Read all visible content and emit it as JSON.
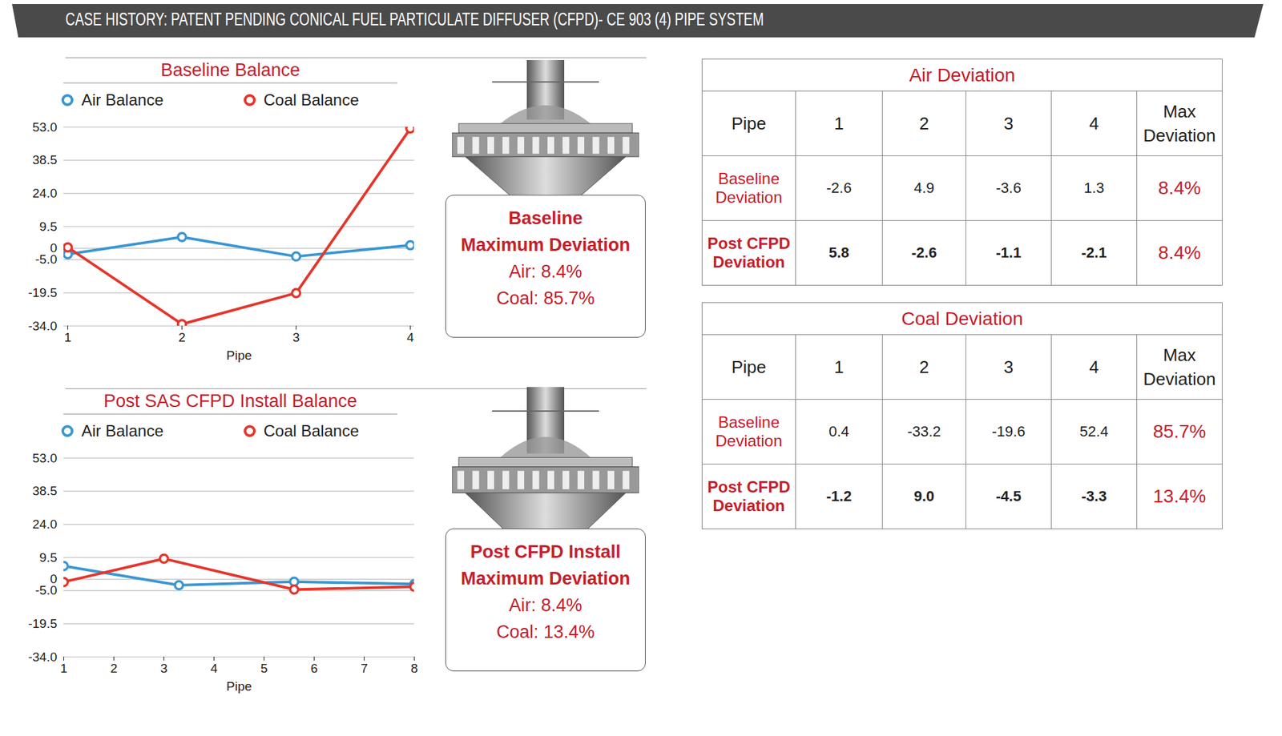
{
  "header": {
    "title": "CASE HISTORY: PATENT PENDING CONICAL FUEL PARTICULATE DIFFUSER (CFPD)- CE 903 (4) PIPE SYSTEM"
  },
  "chart_data": [
    {
      "type": "line",
      "title": "Baseline Balance",
      "xlabel": "Pipe",
      "categories": [
        "1",
        "2",
        "3",
        "4"
      ],
      "series": [
        {
          "name": "Air Balance",
          "color": "#3a96d2",
          "marker": "circle",
          "values": [
            -2.6,
            4.9,
            -3.6,
            1.3
          ]
        },
        {
          "name": "Coal Balance",
          "color": "#e5352b",
          "marker": "circle",
          "values": [
            0.4,
            -33.2,
            -19.6,
            52.4
          ]
        }
      ],
      "ylim": [
        -34,
        53
      ],
      "yticks": [
        {
          "value": 53,
          "label": "53.0"
        },
        38.5,
        {
          "value": 24,
          "label": "24.0"
        },
        9.5,
        0,
        {
          "value": -5,
          "label": "-5.0"
        },
        -19.5,
        {
          "value": -34,
          "label": "-34.0"
        }
      ],
      "grid": true,
      "legend": "top"
    },
    {
      "type": "line",
      "title": "Post SAS CFPD Install Balance",
      "xlabel": "Pipe",
      "xlim": [
        1,
        8
      ],
      "xticks": [
        1,
        2,
        3,
        4,
        5,
        6,
        7,
        8
      ],
      "series": [
        {
          "name": "Air Balance",
          "color": "#3a96d2",
          "marker": "circle",
          "x": [
            1,
            3.3,
            5.6,
            8
          ],
          "values": [
            5.8,
            -2.6,
            -1.1,
            -2.1
          ]
        },
        {
          "name": "Coal Balance",
          "color": "#e5352b",
          "marker": "circle",
          "x": [
            1,
            3,
            5.6,
            8
          ],
          "values": [
            -1.2,
            9.0,
            -4.5,
            -3.3
          ]
        }
      ],
      "ylim": [
        -34,
        53
      ],
      "yticks": [
        {
          "value": 53,
          "label": "53.0"
        },
        38.5,
        {
          "value": 24,
          "label": "24.0"
        },
        9.5,
        0,
        {
          "value": -5,
          "label": "-5.0"
        },
        -19.5,
        {
          "value": -34,
          "label": "-34.0"
        }
      ],
      "grid": true,
      "legend": "top"
    }
  ],
  "callouts": [
    {
      "title": "Baseline Maximum Deviation",
      "lines": [
        "Air: 8.4%",
        "Coal: 85.7%"
      ]
    },
    {
      "title": "Post CFPD Install Maximum Deviation",
      "lines": [
        "Air: 8.4%",
        "Coal: 13.4%"
      ]
    }
  ],
  "tables": [
    {
      "title": "Air Deviation",
      "header": [
        "Pipe",
        "1",
        "2",
        "3",
        "4",
        "Max Deviation"
      ],
      "rows": [
        [
          "Baseline Deviation",
          "-2.6",
          "4.9",
          "-3.6",
          "1.3",
          "8.4%"
        ],
        [
          "Post CFPD Deviation",
          "5.8",
          "-2.6",
          "-1.1",
          "-2.1",
          "8.4%"
        ]
      ]
    },
    {
      "title": "Coal Deviation",
      "header": [
        "Pipe",
        "1",
        "2",
        "3",
        "4",
        "Max Deviation"
      ],
      "rows": [
        [
          "Baseline Deviation",
          "0.4",
          "-33.2",
          "-19.6",
          "52.4",
          "85.7%"
        ],
        [
          "Post CFPD Deviation",
          "-1.2",
          "9.0",
          "-4.5",
          "-3.3",
          "13.4%"
        ]
      ]
    }
  ]
}
